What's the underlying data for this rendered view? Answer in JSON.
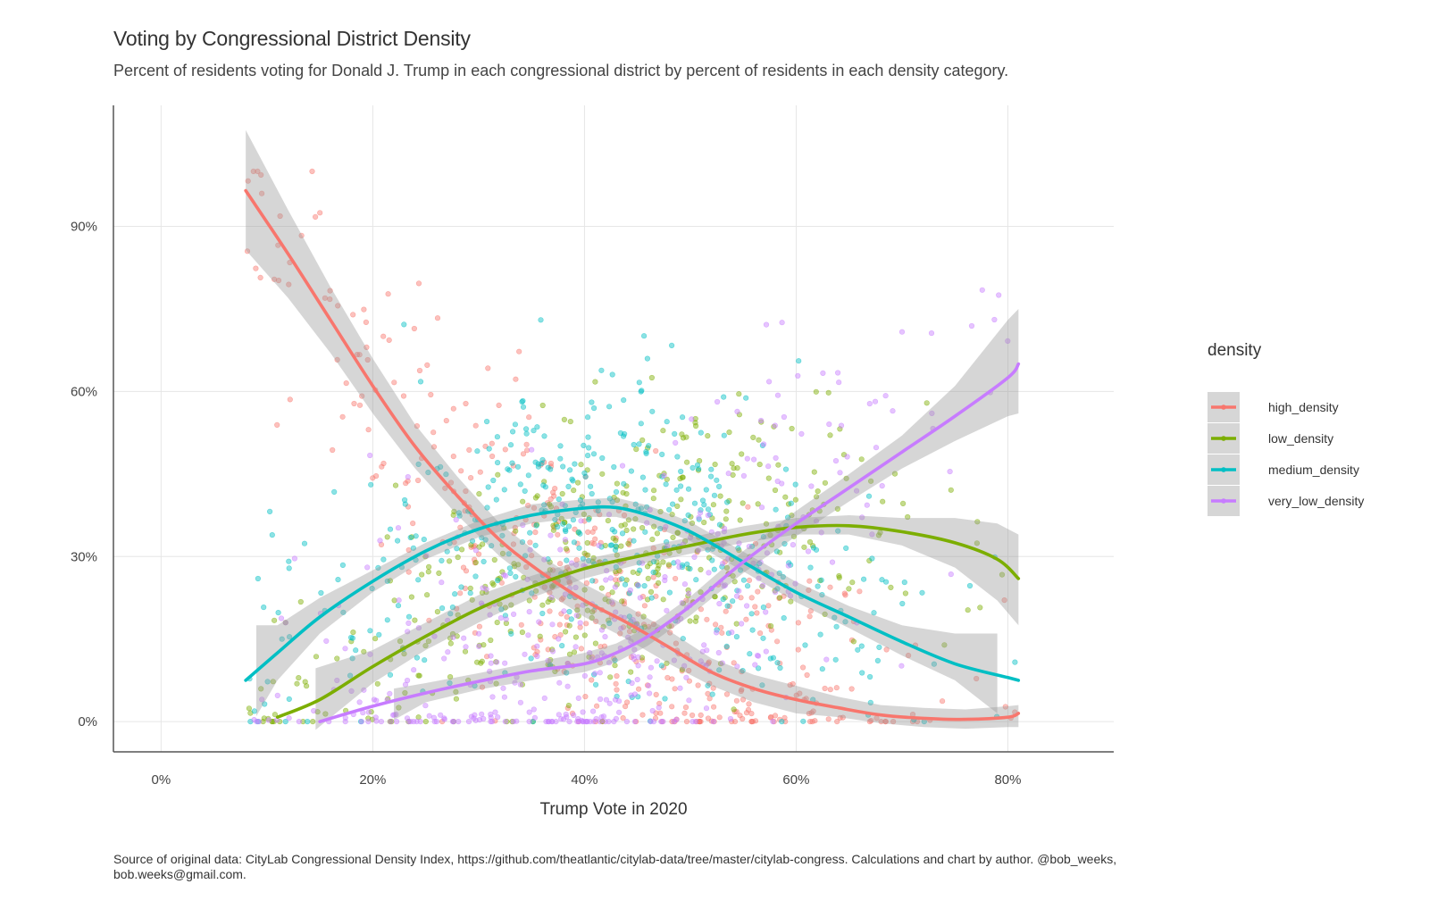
{
  "colors": {
    "high_density": "#F8766D",
    "low_density": "#7CAE00",
    "medium_density": "#00BFC4",
    "very_low_density": "#C77CFF",
    "ribbon": "#999999",
    "grid": "#e6e6e6",
    "axis": "#555555"
  },
  "chart_data": {
    "type": "scatter",
    "title": "Voting by Congressional District Density",
    "subtitle": "Percent of residents voting for Donald J. Trump in each congressional district by percent of residents in each density category.",
    "xlabel": "Trump Vote in 2020",
    "ylabel": "",
    "xlim": [
      -4.5,
      90
    ],
    "ylim": [
      -5.5,
      112
    ],
    "x_ticks": [
      0,
      20,
      40,
      60,
      80
    ],
    "x_tick_labels": [
      "0%",
      "20%",
      "40%",
      "60%",
      "80%"
    ],
    "y_ticks": [
      0,
      30,
      60,
      90
    ],
    "y_tick_labels": [
      "0%",
      "30%",
      "60%",
      "90%"
    ],
    "grid": true,
    "legend": {
      "title": "density",
      "position": "right",
      "entries": [
        "high_density",
        "low_density",
        "medium_density",
        "very_low_density"
      ]
    },
    "series": [
      {
        "name": "high_density",
        "color": "#F8766D",
        "smooth": [
          [
            8,
            96.5
          ],
          [
            12,
            85
          ],
          [
            16,
            73
          ],
          [
            20,
            61
          ],
          [
            24,
            50
          ],
          [
            28,
            41
          ],
          [
            32,
            33
          ],
          [
            36,
            27
          ],
          [
            40,
            22
          ],
          [
            44,
            18
          ],
          [
            48,
            13.5
          ],
          [
            52,
            9
          ],
          [
            56,
            6
          ],
          [
            60,
            4
          ],
          [
            64,
            2.5
          ],
          [
            68,
            1.2
          ],
          [
            72,
            0.6
          ],
          [
            76,
            0.4
          ],
          [
            80,
            0.8
          ],
          [
            81,
            1.5
          ]
        ],
        "band": [
          [
            8,
            85.7,
            107.5
          ],
          [
            12,
            77,
            93
          ],
          [
            16,
            67,
            79
          ],
          [
            20,
            56,
            66
          ],
          [
            24,
            46,
            54
          ],
          [
            28,
            37.5,
            44.5
          ],
          [
            32,
            30,
            36
          ],
          [
            36,
            24,
            30
          ],
          [
            40,
            19,
            25
          ],
          [
            44,
            15,
            21
          ],
          [
            48,
            10.5,
            16.5
          ],
          [
            52,
            6.5,
            11.5
          ],
          [
            56,
            3.5,
            8.5
          ],
          [
            60,
            1.5,
            6.5
          ],
          [
            64,
            0.8,
            4.5
          ],
          [
            68,
            -0.3,
            3
          ],
          [
            72,
            -1,
            2.5
          ],
          [
            76,
            -1.3,
            2.2
          ],
          [
            80,
            -1,
            2.8
          ],
          [
            81,
            -1,
            3
          ]
        ]
      },
      {
        "name": "low_density",
        "color": "#7CAE00",
        "smooth": [
          [
            11,
            0.8
          ],
          [
            15,
            4
          ],
          [
            20,
            10
          ],
          [
            25,
            15.5
          ],
          [
            30,
            20.5
          ],
          [
            35,
            24.5
          ],
          [
            40,
            27.8
          ],
          [
            45,
            30
          ],
          [
            50,
            32
          ],
          [
            55,
            34
          ],
          [
            60,
            35.3
          ],
          [
            65,
            35.6
          ],
          [
            70,
            34.5
          ],
          [
            75,
            32.5
          ],
          [
            79,
            29.5
          ],
          [
            81,
            26
          ]
        ],
        "band": [
          [
            14.6,
            -1.5,
            9.7
          ],
          [
            20,
            7,
            13
          ],
          [
            25,
            13,
            18
          ],
          [
            30,
            18,
            23
          ],
          [
            35,
            22.5,
            26.5
          ],
          [
            40,
            26,
            29.5
          ],
          [
            45,
            28.5,
            31.5
          ],
          [
            50,
            30.5,
            33.5
          ],
          [
            55,
            32.5,
            35.5
          ],
          [
            60,
            34,
            37
          ],
          [
            65,
            34,
            37.5
          ],
          [
            70,
            32,
            37
          ],
          [
            75,
            28,
            37
          ],
          [
            79,
            22,
            36
          ],
          [
            81,
            17.5,
            34
          ]
        ]
      },
      {
        "name": "medium_density",
        "color": "#00BFC4",
        "smooth": [
          [
            8,
            7.5
          ],
          [
            11,
            12.5
          ],
          [
            15,
            19
          ],
          [
            20,
            25.5
          ],
          [
            25,
            31
          ],
          [
            30,
            35
          ],
          [
            35,
            37.5
          ],
          [
            40,
            38.8
          ],
          [
            43,
            38.9
          ],
          [
            46,
            37.5
          ],
          [
            50,
            34.5
          ],
          [
            55,
            29
          ],
          [
            60,
            23.5
          ],
          [
            65,
            19
          ],
          [
            70,
            14.5
          ],
          [
            75,
            10.5
          ],
          [
            80,
            8
          ],
          [
            81,
            7.5
          ]
        ],
        "band": [
          [
            9,
            1,
            17.5
          ],
          [
            11,
            7.5,
            17.5
          ],
          [
            15,
            16,
            22.5
          ],
          [
            20,
            23.5,
            27.5
          ],
          [
            25,
            29.5,
            32.5
          ],
          [
            30,
            33.5,
            36.5
          ],
          [
            35,
            36,
            39.5
          ],
          [
            40,
            37.2,
            40.4
          ],
          [
            43,
            37.2,
            40.7
          ],
          [
            46,
            35.8,
            39.3
          ],
          [
            50,
            32.8,
            36.3
          ],
          [
            55,
            27.3,
            30.9
          ],
          [
            60,
            21.7,
            25.4
          ],
          [
            65,
            17,
            21
          ],
          [
            70,
            12,
            17.5
          ],
          [
            75,
            7.5,
            16
          ],
          [
            79,
            1.5,
            16
          ]
        ]
      },
      {
        "name": "very_low_density",
        "color": "#C77CFF",
        "smooth": [
          [
            15,
            0
          ],
          [
            20,
            2.8
          ],
          [
            25,
            5.2
          ],
          [
            30,
            7.3
          ],
          [
            35,
            9.2
          ],
          [
            40,
            10.5
          ],
          [
            43,
            12.5
          ],
          [
            46,
            15.5
          ],
          [
            50,
            21
          ],
          [
            55,
            29
          ],
          [
            60,
            36
          ],
          [
            65,
            42.5
          ],
          [
            70,
            49
          ],
          [
            75,
            55.5
          ],
          [
            80,
            62.5
          ],
          [
            81,
            65
          ]
        ],
        "band": [
          [
            22,
            0.3,
            6
          ],
          [
            25,
            3.5,
            7
          ],
          [
            30,
            5.8,
            8.8
          ],
          [
            35,
            7.5,
            10.7
          ],
          [
            40,
            9,
            12.5
          ],
          [
            43,
            10.8,
            14.2
          ],
          [
            46,
            13.8,
            17.2
          ],
          [
            50,
            19.3,
            22.7
          ],
          [
            55,
            27,
            31
          ],
          [
            60,
            33.7,
            38.3
          ],
          [
            65,
            40,
            45
          ],
          [
            70,
            46,
            52
          ],
          [
            75,
            51,
            61
          ],
          [
            80,
            55.5,
            73
          ],
          [
            81,
            56,
            75
          ]
        ]
      }
    ]
  },
  "caption": "Source of original data: CityLab Congressional Density Index, https://github.com/theatlantic/citylab-data/tree/master/citylab-congress. Calculations and chart by author. @bob_weeks, bob.weeks@gmail.com."
}
